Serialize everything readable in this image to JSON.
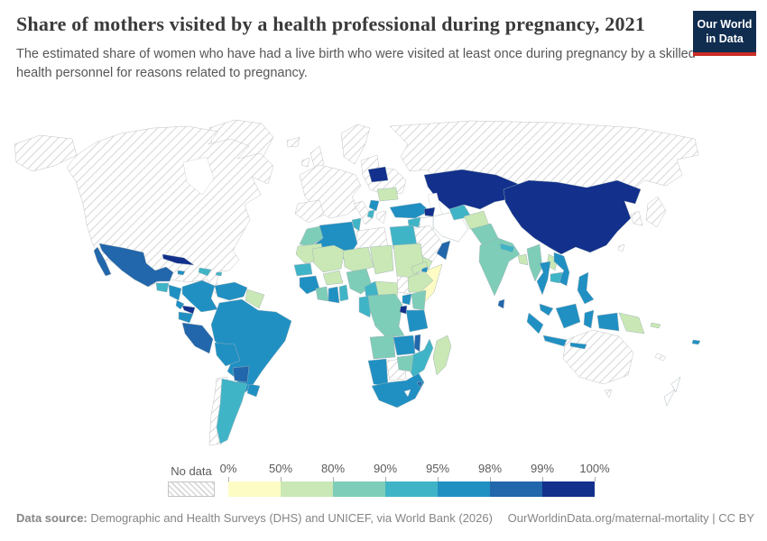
{
  "header": {
    "title": "Share of mothers visited by a health professional during pregnancy, 2021",
    "subtitle": "The estimated share of women who have had a live birth who were visited at least once during pregnancy by a skilled health personnel for reasons related to pregnancy.",
    "logo_line1": "Our World",
    "logo_line2": "in Data"
  },
  "legend": {
    "no_data_label": "No data",
    "ticks": [
      "0%",
      "50%",
      "80%",
      "90%",
      "95%",
      "98%",
      "99%",
      "100%"
    ],
    "bins": [
      {
        "range": "0-50%",
        "color": "#fdfcc4"
      },
      {
        "range": "50-80%",
        "color": "#c9e8b5"
      },
      {
        "range": "80-90%",
        "color": "#7ecdb8"
      },
      {
        "range": "90-95%",
        "color": "#40b4c7"
      },
      {
        "range": "95-98%",
        "color": "#2090c3"
      },
      {
        "range": "98-99%",
        "color": "#2266ab"
      },
      {
        "range": "99-100%",
        "color": "#12308c"
      }
    ],
    "no_data_color": "hatch",
    "missing_color": "#ffffff"
  },
  "footer": {
    "source_label": "Data source:",
    "source_text": " Demographic and Health Surveys (DHS) and UNICEF, via World Bank (2026)",
    "link_text": "OurWorldinData.org/maternal-mortality | CC BY"
  },
  "chart_data": {
    "type": "choropleth-world-map",
    "title": "Share of mothers visited by a health professional during pregnancy",
    "year": "2021",
    "unit": "%",
    "legend_bins": [
      "0-50%",
      "50-80%",
      "80-90%",
      "90-95%",
      "95-98%",
      "98-99%",
      "99-100%"
    ],
    "regions": [
      {
        "id": "canada-usa",
        "name": "United States & Canada",
        "bin": "no-data"
      },
      {
        "id": "greenland",
        "name": "Greenland",
        "bin": "no-data"
      },
      {
        "id": "iceland",
        "name": "Iceland",
        "bin": "no-data"
      },
      {
        "id": "uk",
        "name": "United Kingdom",
        "bin": "no-data"
      },
      {
        "id": "ireland",
        "name": "Ireland",
        "bin": "no-data"
      },
      {
        "id": "scandinavia",
        "name": "Scandinavia",
        "bin": "no-data"
      },
      {
        "id": "europe-west",
        "name": "Western Europe",
        "bin": "no-data"
      },
      {
        "id": "iberia",
        "name": "Spain & Portugal",
        "bin": "no-data"
      },
      {
        "id": "italy",
        "name": "Italy",
        "bin": "no-data"
      },
      {
        "id": "east-europe",
        "name": "Poland & Ukraine",
        "bin": "no-data"
      },
      {
        "id": "greece",
        "name": "Greece",
        "bin": "no-data"
      },
      {
        "id": "russia",
        "name": "Russia",
        "bin": "no-data"
      },
      {
        "id": "saudi-arabia",
        "name": "Saudi Arabia",
        "bin": "no-data"
      },
      {
        "id": "libya",
        "name": "Libya",
        "bin": "no-data"
      },
      {
        "id": "chile",
        "name": "Chile",
        "bin": "no-data"
      },
      {
        "id": "botswana",
        "name": "Botswana",
        "bin": "no-data"
      },
      {
        "id": "south-sudan",
        "name": "South Sudan",
        "bin": "no-data"
      },
      {
        "id": "australia",
        "name": "Australia",
        "bin": "no-data"
      },
      {
        "id": "japan",
        "name": "Japan",
        "bin": "no-data"
      },
      {
        "id": "korea",
        "name": "South Korea",
        "bin": "no-data"
      },
      {
        "id": "taiwan",
        "name": "Taiwan",
        "bin": "no-data"
      },
      {
        "id": "new-caledonia",
        "name": "New Caledonia",
        "bin": "no-data"
      },
      {
        "id": "iran",
        "name": "Iran",
        "bin": "missing"
      },
      {
        "id": "iraq",
        "name": "Iraq",
        "bin": "missing"
      },
      {
        "id": "new-zealand",
        "name": "New Zealand",
        "bin": "missing"
      },
      {
        "id": "lesotho",
        "name": "Lesotho",
        "bin": "missing"
      },
      {
        "id": "somalia",
        "name": "Somalia",
        "bin": "0-50%"
      },
      {
        "id": "mauritania",
        "name": "Mauritania",
        "bin": "50-80%"
      },
      {
        "id": "mali",
        "name": "Mali",
        "bin": "50-80%"
      },
      {
        "id": "niger",
        "name": "Niger",
        "bin": "50-80%"
      },
      {
        "id": "chad",
        "name": "Chad",
        "bin": "50-80%"
      },
      {
        "id": "sudan",
        "name": "Sudan",
        "bin": "50-80%"
      },
      {
        "id": "eritrea",
        "name": "Eritrea",
        "bin": "50-80%"
      },
      {
        "id": "ethiopia",
        "name": "Ethiopia",
        "bin": "50-80%"
      },
      {
        "id": "car",
        "name": "Central African Republic",
        "bin": "50-80%"
      },
      {
        "id": "burkina-faso",
        "name": "Burkina Faso",
        "bin": "50-80%"
      },
      {
        "id": "guyanas",
        "name": "Guyana & Suriname",
        "bin": "50-80%"
      },
      {
        "id": "romania",
        "name": "Romania",
        "bin": "50-80%"
      },
      {
        "id": "afghanistan",
        "name": "Afghanistan",
        "bin": "50-80%"
      },
      {
        "id": "laos",
        "name": "Laos",
        "bin": "50-80%"
      },
      {
        "id": "bangladesh",
        "name": "Bangladesh",
        "bin": "50-80%"
      },
      {
        "id": "png",
        "name": "Papua New Guinea",
        "bin": "50-80%"
      },
      {
        "id": "yemen",
        "name": "Yemen",
        "bin": "50-80%"
      },
      {
        "id": "madagascar",
        "name": "Madagascar",
        "bin": "50-80%"
      },
      {
        "id": "solomon-islands",
        "name": "Solomon Islands",
        "bin": "50-80%"
      },
      {
        "id": "morocco",
        "name": "Morocco",
        "bin": "80-90%"
      },
      {
        "id": "ivory-coast",
        "name": "Cote d'Ivoire",
        "bin": "80-90%"
      },
      {
        "id": "nigeria",
        "name": "Nigeria",
        "bin": "80-90%"
      },
      {
        "id": "drc",
        "name": "Democratic Republic of Congo",
        "bin": "80-90%"
      },
      {
        "id": "kenya",
        "name": "Kenya",
        "bin": "80-90%"
      },
      {
        "id": "zimbabwe",
        "name": "Zimbabwe",
        "bin": "80-90%"
      },
      {
        "id": "angola",
        "name": "Angola",
        "bin": "80-90%"
      },
      {
        "id": "india",
        "name": "India",
        "bin": "80-90%"
      },
      {
        "id": "pakistan",
        "name": "Pakistan",
        "bin": "80-90%"
      },
      {
        "id": "myanmar",
        "name": "Myanmar",
        "bin": "80-90%"
      },
      {
        "id": "senegal",
        "name": "Senegal",
        "bin": "90-95%"
      },
      {
        "id": "togo-benin",
        "name": "Togo & Benin",
        "bin": "90-95%"
      },
      {
        "id": "tunisia",
        "name": "Tunisia",
        "bin": "90-95%"
      },
      {
        "id": "egypt",
        "name": "Egypt",
        "bin": "90-95%"
      },
      {
        "id": "congo-gabon",
        "name": "Congo & Gabon",
        "bin": "90-95%"
      },
      {
        "id": "cameroon",
        "name": "Cameroon",
        "bin": "90-95%"
      },
      {
        "id": "mozambique",
        "name": "Mozambique",
        "bin": "90-95%"
      },
      {
        "id": "argentina",
        "name": "Argentina",
        "bin": "90-95%"
      },
      {
        "id": "hispaniola",
        "name": "Haiti & Dominican Republic",
        "bin": "90-95%"
      },
      {
        "id": "puerto-rico",
        "name": "Puerto Rico",
        "bin": "90-95%"
      },
      {
        "id": "guatemala",
        "name": "Guatemala & Belize",
        "bin": "90-95%"
      },
      {
        "id": "turkmenistan",
        "name": "Turkmenistan",
        "bin": "90-95%"
      },
      {
        "id": "cambodia",
        "name": "Cambodia",
        "bin": "90-95%"
      },
      {
        "id": "syria",
        "name": "Syria",
        "bin": "90-95%"
      },
      {
        "id": "jordan-israel",
        "name": "Jordan & Israel",
        "bin": "90-95%"
      },
      {
        "id": "albania",
        "name": "Albania",
        "bin": "90-95%"
      },
      {
        "id": "nepal",
        "name": "Nepal",
        "bin": "90-95%"
      },
      {
        "id": "algeria",
        "name": "Algeria",
        "bin": "95-98%"
      },
      {
        "id": "guinea",
        "name": "Guinea & Sierra Leone",
        "bin": "95-98%"
      },
      {
        "id": "ghana",
        "name": "Ghana",
        "bin": "95-98%"
      },
      {
        "id": "uganda",
        "name": "Uganda",
        "bin": "95-98%"
      },
      {
        "id": "tanzania",
        "name": "Tanzania",
        "bin": "95-98%"
      },
      {
        "id": "zambia",
        "name": "Zambia",
        "bin": "95-98%"
      },
      {
        "id": "namibia",
        "name": "Namibia",
        "bin": "95-98%"
      },
      {
        "id": "south-africa",
        "name": "South Africa",
        "bin": "95-98%"
      },
      {
        "id": "brazil",
        "name": "Brazil",
        "bin": "95-98%"
      },
      {
        "id": "colombia",
        "name": "Colombia",
        "bin": "95-98%"
      },
      {
        "id": "venezuela",
        "name": "Venezuela",
        "bin": "95-98%"
      },
      {
        "id": "ecuador",
        "name": "Ecuador",
        "bin": "95-98%"
      },
      {
        "id": "bolivia",
        "name": "Bolivia",
        "bin": "95-98%"
      },
      {
        "id": "uruguay",
        "name": "Uruguay",
        "bin": "95-98%"
      },
      {
        "id": "honduras-nicaragua",
        "name": "Honduras & Nicaragua",
        "bin": "95-98%"
      },
      {
        "id": "costa-rica",
        "name": "Costa Rica",
        "bin": "95-98%"
      },
      {
        "id": "jamaica",
        "name": "Jamaica",
        "bin": "95-98%"
      },
      {
        "id": "turkey",
        "name": "Turkey",
        "bin": "95-98%"
      },
      {
        "id": "serbia",
        "name": "Serbia",
        "bin": "95-98%"
      },
      {
        "id": "thailand",
        "name": "Thailand",
        "bin": "95-98%"
      },
      {
        "id": "vietnam",
        "name": "Vietnam",
        "bin": "95-98%"
      },
      {
        "id": "malaysia",
        "name": "Malaysia",
        "bin": "95-98%"
      },
      {
        "id": "indonesia",
        "name": "Indonesia",
        "bin": "95-98%"
      },
      {
        "id": "philippines",
        "name": "Philippines",
        "bin": "95-98%"
      },
      {
        "id": "fiji",
        "name": "Fiji",
        "bin": "95-98%"
      },
      {
        "id": "djibouti",
        "name": "Djibouti",
        "bin": "95-98%"
      },
      {
        "id": "mexico",
        "name": "Mexico",
        "bin": "98-99%"
      },
      {
        "id": "peru",
        "name": "Peru",
        "bin": "98-99%"
      },
      {
        "id": "paraguay",
        "name": "Paraguay",
        "bin": "98-99%"
      },
      {
        "id": "oman",
        "name": "Oman",
        "bin": "98-99%"
      },
      {
        "id": "malawi",
        "name": "Malawi",
        "bin": "98-99%"
      },
      {
        "id": "sri-lanka",
        "name": "Sri Lanka",
        "bin": "98-99%"
      },
      {
        "id": "eswatini",
        "name": "Eswatini",
        "bin": "98-99%"
      },
      {
        "id": "cuba",
        "name": "Cuba",
        "bin": "99-100%"
      },
      {
        "id": "panama",
        "name": "Panama",
        "bin": "99-100%"
      },
      {
        "id": "belarus",
        "name": "Belarus",
        "bin": "99-100%"
      },
      {
        "id": "kazakhstan-central-asia",
        "name": "Kazakhstan & Central Asia",
        "bin": "99-100%"
      },
      {
        "id": "azerbaijan",
        "name": "Azerbaijan",
        "bin": "99-100%"
      },
      {
        "id": "china-mongolia",
        "name": "China & Mongolia",
        "bin": "99-100%"
      },
      {
        "id": "rwanda-burundi",
        "name": "Rwanda & Burundi",
        "bin": "99-100%"
      }
    ]
  }
}
